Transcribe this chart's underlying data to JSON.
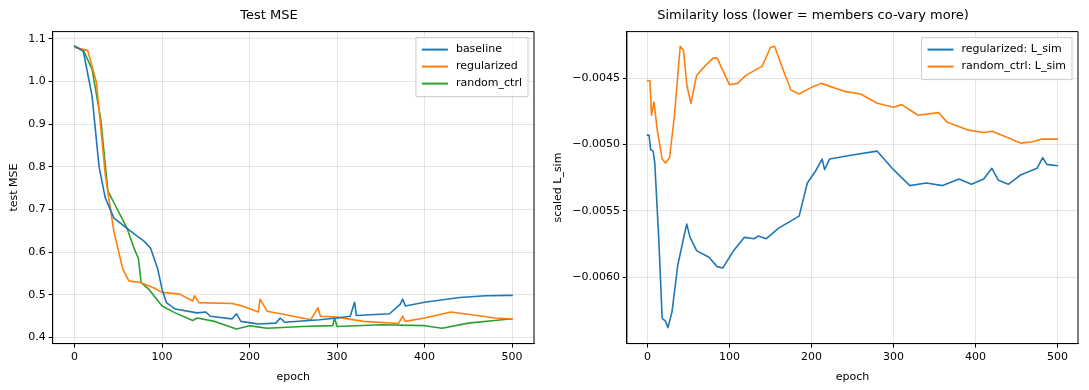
{
  "chart_data": [
    {
      "type": "line",
      "title": "Test MSE",
      "xlabel": "epoch",
      "ylabel": "test MSE",
      "xlim": [
        -25,
        525
      ],
      "xticks": [
        0,
        100,
        200,
        300,
        400,
        500
      ],
      "ylim": [
        0.386,
        1.117
      ],
      "yticks": [
        0.4,
        0.5,
        0.6,
        0.7,
        0.8,
        0.9,
        {
          "value": 1.0,
          "label": "1.0"
        },
        1.1
      ],
      "grid": true,
      "legend": "top right",
      "marker": "none",
      "line_style": "solid",
      "series": [
        {
          "name": "baseline",
          "color": "#1f77b4",
          "x": [
            0,
            10,
            20,
            28,
            35,
            45,
            60,
            70,
            80,
            87,
            95,
            100,
            105,
            115,
            140,
            150,
            155,
            180,
            185,
            190,
            210,
            230,
            235,
            240,
            280,
            300,
            315,
            320,
            322,
            360,
            372,
            375,
            378,
            400,
            440,
            470,
            500
          ],
          "values": [
            1.083,
            1.071,
            0.966,
            0.8,
            0.728,
            0.68,
            0.656,
            0.64,
            0.625,
            0.609,
            0.561,
            0.513,
            0.482,
            0.467,
            0.458,
            0.46,
            0.45,
            0.444,
            0.456,
            0.438,
            0.432,
            0.434,
            0.446,
            0.436,
            0.442,
            0.446,
            0.45,
            0.483,
            0.452,
            0.456,
            0.478,
            0.49,
            0.474,
            0.483,
            0.494,
            0.498,
            0.499
          ]
        },
        {
          "name": "regularized",
          "color": "#ff7f0e",
          "x": [
            0,
            15,
            25,
            35,
            45,
            55,
            62,
            75,
            90,
            100,
            120,
            135,
            137,
            142,
            180,
            190,
            210,
            212,
            220,
            240,
            270,
            278,
            281,
            300,
            330,
            370,
            375,
            378,
            400,
            430,
            460,
            480,
            500
          ],
          "values": [
            1.08,
            1.073,
            0.998,
            0.783,
            0.648,
            0.561,
            0.533,
            0.529,
            0.517,
            0.506,
            0.502,
            0.486,
            0.498,
            0.482,
            0.48,
            0.475,
            0.46,
            0.49,
            0.462,
            0.454,
            0.442,
            0.47,
            0.45,
            0.448,
            0.438,
            0.433,
            0.45,
            0.438,
            0.446,
            0.46,
            0.452,
            0.446,
            0.444
          ]
        },
        {
          "name": "random_ctrl",
          "color": "#2ca02c",
          "x": [
            0,
            10,
            20,
            30,
            38,
            45,
            60,
            68,
            73,
            76,
            85,
            100,
            115,
            135,
            140,
            160,
            185,
            200,
            220,
            260,
            295,
            297,
            300,
            350,
            400,
            420,
            450,
            480,
            500
          ],
          "values": [
            1.083,
            1.073,
            1.029,
            0.91,
            0.744,
            0.716,
            0.656,
            0.609,
            0.585,
            0.529,
            0.513,
            0.474,
            0.458,
            0.44,
            0.446,
            0.438,
            0.42,
            0.428,
            0.422,
            0.426,
            0.428,
            0.446,
            0.426,
            0.43,
            0.428,
            0.422,
            0.434,
            0.44,
            0.444
          ]
        }
      ]
    },
    {
      "type": "line",
      "title": "Similarity loss (lower = members co-vary more)",
      "xlabel": "epoch",
      "ylabel": "scaled L_sim",
      "xlim": [
        -25,
        525
      ],
      "xticks": [
        0,
        100,
        200,
        300,
        400,
        500
      ],
      "ylim": [
        -0.0065,
        -0.00415
      ],
      "yticks": [
        {
          "value": -0.006,
          "label": "−0.0060"
        },
        {
          "value": -0.0055,
          "label": "−0.0055"
        },
        {
          "value": -0.005,
          "label": "−0.0050"
        },
        {
          "value": -0.0045,
          "label": "−0.0045"
        }
      ],
      "grid": true,
      "legend": "top right",
      "marker": "none",
      "line_style": "solid",
      "series": [
        {
          "name": "regularized: L_sim",
          "color": "#1f77b4",
          "x": [
            0,
            2,
            4,
            7,
            9,
            14,
            18,
            22,
            25,
            30,
            37,
            45,
            48,
            52,
            60,
            75,
            85,
            92,
            105,
            118,
            130,
            135,
            145,
            160,
            185,
            195,
            205,
            213,
            216,
            222,
            250,
            280,
            300,
            320,
            340,
            360,
            380,
            395,
            410,
            420,
            428,
            440,
            455,
            475,
            482,
            487,
            500
          ],
          "values": [
            -0.00493,
            -0.00493,
            -0.00504,
            -0.00505,
            -0.00514,
            -0.00573,
            -0.00631,
            -0.00633,
            -0.00638,
            -0.00626,
            -0.00591,
            -0.00568,
            -0.0056,
            -0.0057,
            -0.0058,
            -0.00585,
            -0.00592,
            -0.00593,
            -0.0058,
            -0.0057,
            -0.00571,
            -0.00569,
            -0.00571,
            -0.00563,
            -0.00554,
            -0.00529,
            -0.0052,
            -0.00511,
            -0.00519,
            -0.00511,
            -0.00508,
            -0.00505,
            -0.00519,
            -0.00531,
            -0.00529,
            -0.00531,
            -0.00526,
            -0.0053,
            -0.00526,
            -0.00518,
            -0.00527,
            -0.0053,
            -0.00523,
            -0.00518,
            -0.0051,
            -0.00515,
            -0.00516
          ]
        },
        {
          "name": "random_ctrl: L_sim",
          "color": "#ff7f0e",
          "x": [
            0,
            3,
            5,
            8,
            12,
            18,
            22,
            27,
            33,
            40,
            44,
            48,
            53,
            60,
            70,
            80,
            85,
            100,
            110,
            120,
            140,
            150,
            155,
            165,
            175,
            185,
            200,
            212,
            240,
            260,
            280,
            300,
            310,
            330,
            355,
            365,
            390,
            410,
            420,
            440,
            455,
            470,
            480,
            500
          ],
          "values": [
            -0.00452,
            -0.00452,
            -0.00478,
            -0.00468,
            -0.00489,
            -0.00511,
            -0.00514,
            -0.0051,
            -0.00478,
            -0.00426,
            -0.00429,
            -0.00455,
            -0.00469,
            -0.00448,
            -0.00441,
            -0.00435,
            -0.00435,
            -0.00455,
            -0.00454,
            -0.00448,
            -0.00441,
            -0.00427,
            -0.00426,
            -0.00443,
            -0.00459,
            -0.00462,
            -0.00457,
            -0.00454,
            -0.0046,
            -0.00462,
            -0.00469,
            -0.00472,
            -0.0047,
            -0.00478,
            -0.00476,
            -0.00483,
            -0.00489,
            -0.00491,
            -0.0049,
            -0.00495,
            -0.00499,
            -0.00498,
            -0.00496,
            -0.00496
          ]
        }
      ]
    }
  ]
}
